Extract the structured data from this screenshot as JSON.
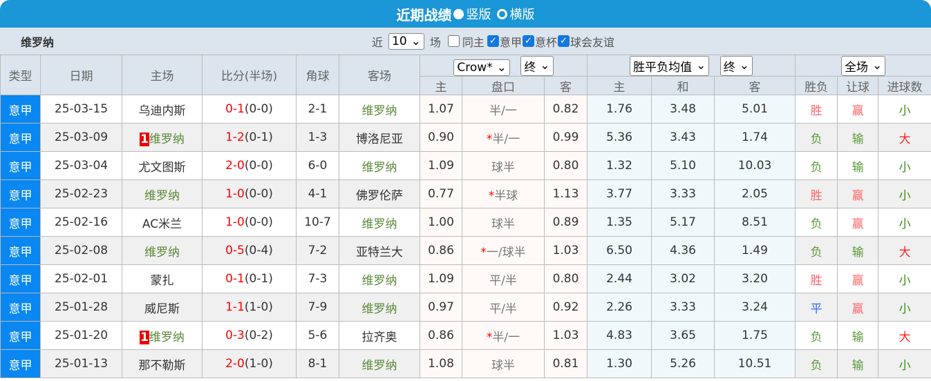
{
  "header": {
    "title": "近期战绩",
    "view_vertical": "竖版",
    "view_horizontal": "横版"
  },
  "filter": {
    "team": "维罗纳",
    "near": "近",
    "count": "10",
    "games": "场",
    "same_home": "同主",
    "leagues": [
      {
        "label": "意甲",
        "checked": true
      },
      {
        "label": "意杯",
        "checked": true
      },
      {
        "label": "球会友谊",
        "checked": true
      }
    ]
  },
  "table": {
    "headers": {
      "type": "类型",
      "date": "日期",
      "home": "主场",
      "score": "比分(半场)",
      "corner": "角球",
      "away": "客场"
    },
    "odds_select": "Crow*",
    "odds_stage": "终",
    "eu_select": "胜平负均值",
    "eu_stage": "终",
    "result_select": "全场",
    "sub": [
      "主",
      "盘口",
      "客",
      "主",
      "和",
      "客",
      "胜负",
      "让球",
      "进球数"
    ],
    "rows": [
      {
        "type": "意甲",
        "date": "25-03-15",
        "home": "乌迪内斯",
        "home_rank": "",
        "home_focus": false,
        "ft": "0-1",
        "ht": "(0-0)",
        "corner": "2-1",
        "away": "维罗纳",
        "away_focus": true,
        "ah_h": "1.07",
        "star": "",
        "line": "半/一",
        "ah_a": "0.82",
        "eu_h": "1.76",
        "eu_d": "3.48",
        "eu_a": "5.01",
        "wl": "胜",
        "wl_c": "win",
        "ah_r": "赢",
        "ah_c": "win",
        "ou": "小",
        "ou_c": "small"
      },
      {
        "type": "意甲",
        "date": "25-03-09",
        "home": "维罗纳",
        "home_rank": "1",
        "home_focus": true,
        "ft": "1-2",
        "ht": "(0-1)",
        "corner": "1-3",
        "away": "博洛尼亚",
        "away_focus": false,
        "ah_h": "0.90",
        "star": "*",
        "line": "半/一",
        "ah_a": "0.99",
        "eu_h": "5.36",
        "eu_d": "3.43",
        "eu_a": "1.74",
        "wl": "负",
        "wl_c": "lose",
        "ah_r": "输",
        "ah_c": "lose",
        "ou": "大",
        "ou_c": "big"
      },
      {
        "type": "意甲",
        "date": "25-03-04",
        "home": "尤文图斯",
        "home_rank": "",
        "home_focus": false,
        "ft": "2-0",
        "ht": "(0-0)",
        "corner": "6-0",
        "away": "维罗纳",
        "away_focus": true,
        "ah_h": "1.09",
        "star": "",
        "line": "球半",
        "ah_a": "0.80",
        "eu_h": "1.32",
        "eu_d": "5.10",
        "eu_a": "10.03",
        "wl": "负",
        "wl_c": "lose",
        "ah_r": "输",
        "ah_c": "lose",
        "ou": "小",
        "ou_c": "small"
      },
      {
        "type": "意甲",
        "date": "25-02-23",
        "home": "维罗纳",
        "home_rank": "",
        "home_focus": true,
        "ft": "1-0",
        "ht": "(0-0)",
        "corner": "4-1",
        "away": "佛罗伦萨",
        "away_focus": false,
        "ah_h": "0.77",
        "star": "*",
        "line": "半球",
        "ah_a": "1.13",
        "eu_h": "3.77",
        "eu_d": "3.33",
        "eu_a": "2.05",
        "wl": "胜",
        "wl_c": "win",
        "ah_r": "赢",
        "ah_c": "win",
        "ou": "小",
        "ou_c": "small"
      },
      {
        "type": "意甲",
        "date": "25-02-16",
        "home": "AC米兰",
        "home_rank": "",
        "home_focus": false,
        "ft": "1-0",
        "ht": "(0-0)",
        "corner": "10-7",
        "away": "维罗纳",
        "away_focus": true,
        "ah_h": "1.00",
        "star": "",
        "line": "球半",
        "ah_a": "0.89",
        "eu_h": "1.35",
        "eu_d": "5.17",
        "eu_a": "8.51",
        "wl": "负",
        "wl_c": "lose",
        "ah_r": "赢",
        "ah_c": "win",
        "ou": "小",
        "ou_c": "small"
      },
      {
        "type": "意甲",
        "date": "25-02-08",
        "home": "维罗纳",
        "home_rank": "",
        "home_focus": true,
        "ft": "0-5",
        "ht": "(0-4)",
        "corner": "7-2",
        "away": "亚特兰大",
        "away_focus": false,
        "ah_h": "0.86",
        "star": "*",
        "line": "一/球半",
        "ah_a": "1.03",
        "eu_h": "6.50",
        "eu_d": "4.36",
        "eu_a": "1.49",
        "wl": "负",
        "wl_c": "lose",
        "ah_r": "输",
        "ah_c": "lose",
        "ou": "大",
        "ou_c": "big"
      },
      {
        "type": "意甲",
        "date": "25-02-01",
        "home": "蒙扎",
        "home_rank": "",
        "home_focus": false,
        "ft": "0-1",
        "ht": "(0-1)",
        "corner": "7-3",
        "away": "维罗纳",
        "away_focus": true,
        "ah_h": "1.09",
        "star": "",
        "line": "平/半",
        "ah_a": "0.80",
        "eu_h": "2.44",
        "eu_d": "3.02",
        "eu_a": "3.20",
        "wl": "胜",
        "wl_c": "win",
        "ah_r": "赢",
        "ah_c": "win",
        "ou": "小",
        "ou_c": "small"
      },
      {
        "type": "意甲",
        "date": "25-01-28",
        "home": "威尼斯",
        "home_rank": "",
        "home_focus": false,
        "ft": "1-1",
        "ht": "(1-0)",
        "corner": "7-9",
        "away": "维罗纳",
        "away_focus": true,
        "ah_h": "0.97",
        "star": "",
        "line": "平/半",
        "ah_a": "0.92",
        "eu_h": "2.26",
        "eu_d": "3.33",
        "eu_a": "3.24",
        "wl": "平",
        "wl_c": "draw",
        "ah_r": "赢",
        "ah_c": "win",
        "ou": "小",
        "ou_c": "small"
      },
      {
        "type": "意甲",
        "date": "25-01-20",
        "home": "维罗纳",
        "home_rank": "1",
        "home_focus": true,
        "ft": "0-3",
        "ht": "(0-2)",
        "corner": "5-6",
        "away": "拉齐奥",
        "away_focus": false,
        "ah_h": "0.86",
        "star": "*",
        "line": "半/一",
        "ah_a": "1.03",
        "eu_h": "4.83",
        "eu_d": "3.65",
        "eu_a": "1.75",
        "wl": "负",
        "wl_c": "lose",
        "ah_r": "输",
        "ah_c": "lose",
        "ou": "大",
        "ou_c": "big"
      },
      {
        "type": "意甲",
        "date": "25-01-13",
        "home": "那不勒斯",
        "home_rank": "",
        "home_focus": false,
        "ft": "2-0",
        "ht": "(1-0)",
        "corner": "8-1",
        "away": "维罗纳",
        "away_focus": true,
        "ah_h": "1.08",
        "star": "",
        "line": "球半",
        "ah_a": "0.81",
        "eu_h": "1.30",
        "eu_d": "5.26",
        "eu_a": "10.51",
        "wl": "负",
        "wl_c": "lose",
        "ah_r": "输",
        "ah_c": "lose",
        "ou": "小",
        "ou_c": "small"
      }
    ]
  }
}
